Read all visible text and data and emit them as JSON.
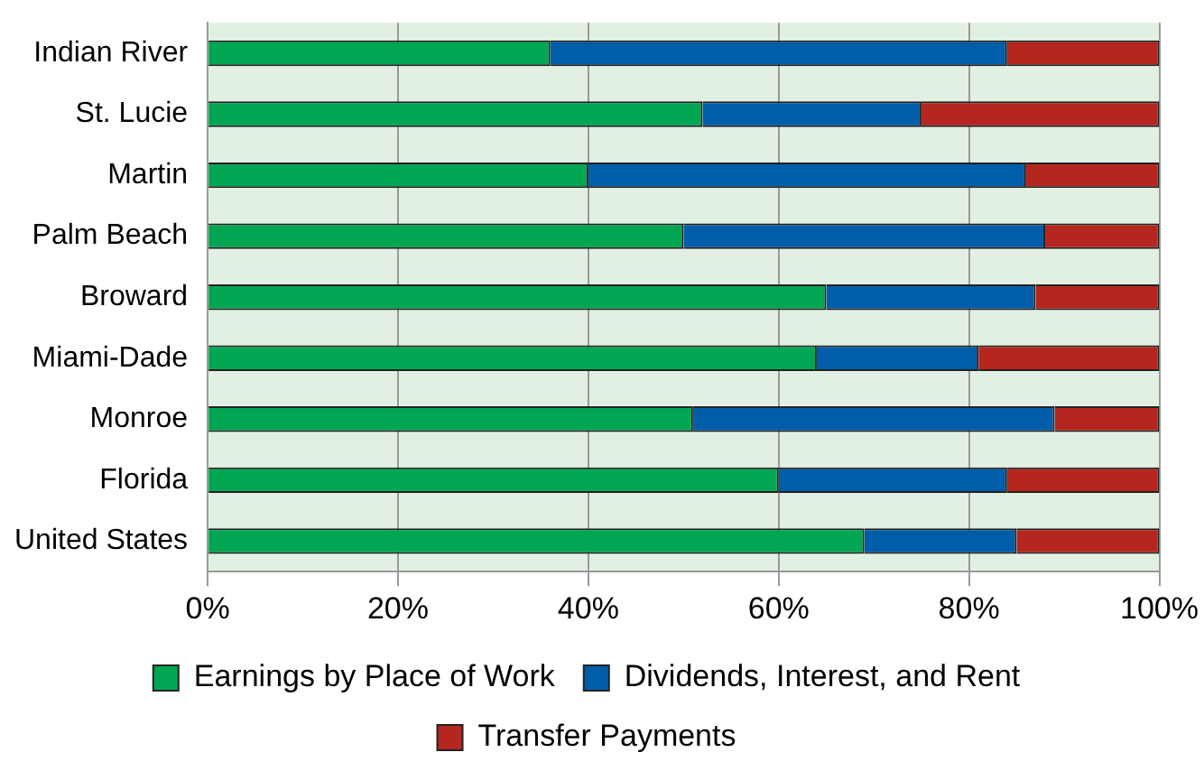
{
  "chart_data": {
    "type": "bar",
    "orientation": "horizontal",
    "stacked": true,
    "categories": [
      "Indian River",
      "St. Lucie",
      "Martin",
      "Palm Beach",
      "Broward",
      "Miami-Dade",
      "Monroe",
      "Florida",
      "United States"
    ],
    "series": [
      {
        "name": "Earnings by Place of Work",
        "color": "#00a651",
        "values": [
          36,
          52,
          40,
          50,
          65,
          64,
          51,
          60,
          69
        ]
      },
      {
        "name": "Dividends, Interest, and Rent",
        "color": "#005daa",
        "values": [
          48,
          23,
          46,
          38,
          22,
          17,
          38,
          24,
          16
        ]
      },
      {
        "name": "Transfer Payments",
        "color": "#b5261e",
        "values": [
          16,
          25,
          14,
          12,
          13,
          19,
          11,
          16,
          15
        ]
      }
    ],
    "xlim": [
      0,
      100
    ],
    "xticks": [
      {
        "value": 0,
        "label": "0%"
      },
      {
        "value": 20,
        "label": "20%"
      },
      {
        "value": 40,
        "label": "40%"
      },
      {
        "value": 60,
        "label": "60%"
      },
      {
        "value": 80,
        "label": "80%"
      },
      {
        "value": 100,
        "label": "100%"
      }
    ],
    "grid": "x",
    "legend": "bottom"
  }
}
